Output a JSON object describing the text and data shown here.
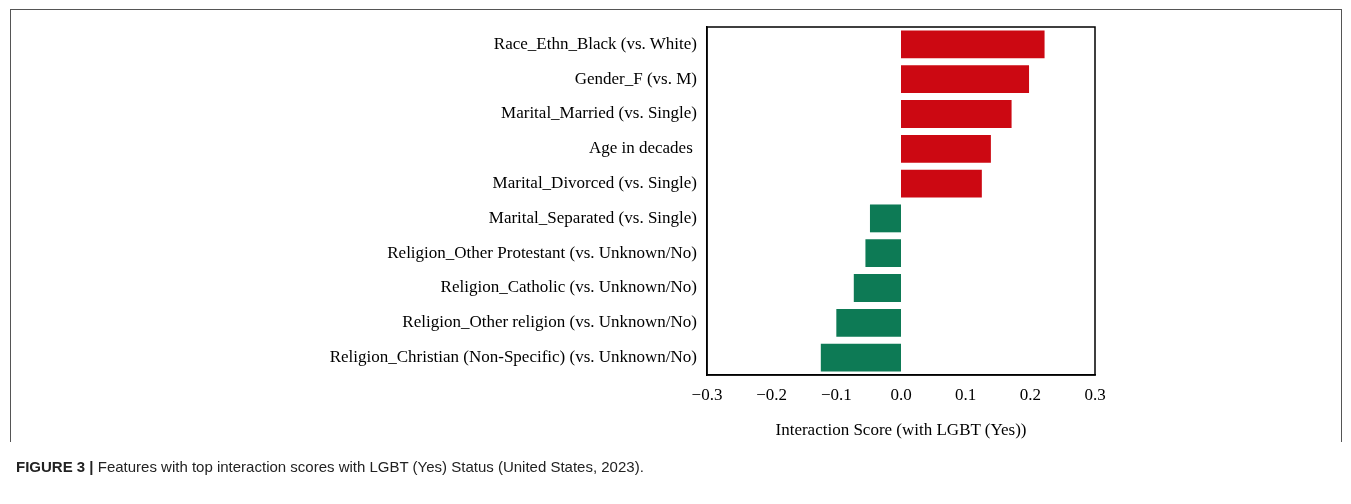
{
  "chart_data": {
    "type": "bar",
    "orientation": "horizontal",
    "categories": [
      "Race_Ethn_Black (vs. White)",
      "Gender_F (vs. M)",
      "Marital_Married (vs. Single)",
      "Age in decades ",
      "Marital_Divorced (vs. Single)",
      "Marital_Separated (vs. Single)",
      "Religion_Other Protestant (vs. Unknown/No)",
      "Religion_Catholic (vs. Unknown/No)",
      "Religion_Other religion (vs. Unknown/No)",
      "Religion_Christian (Non-Specific) (vs. Unknown/No)"
    ],
    "values": [
      0.222,
      0.198,
      0.171,
      0.139,
      0.125,
      -0.048,
      -0.055,
      -0.073,
      -0.1,
      -0.124
    ],
    "colors": [
      "#cc0812",
      "#cc0812",
      "#cc0812",
      "#cc0812",
      "#cc0812",
      "#0d7a55",
      "#0d7a55",
      "#0d7a55",
      "#0d7a55",
      "#0d7a55"
    ],
    "xlim": [
      -0.3,
      0.3
    ],
    "xticks": [
      {
        "value": -0.3,
        "label": "−0.3"
      },
      {
        "value": -0.2,
        "label": "−0.2"
      },
      {
        "value": -0.1,
        "label": "−0.1"
      },
      {
        "value": 0,
        "label": "0.0"
      },
      {
        "value": 0.1,
        "label": "0.1"
      },
      {
        "value": 0.2,
        "label": "0.2"
      },
      {
        "value": 0.3,
        "label": "0.3"
      }
    ],
    "xlabel": "Interaction Score (with LGBT (Yes))",
    "grid": false,
    "legend": false,
    "annotations": [
      "FIGURE 3 | Features with top interaction scores with LGBT (Yes) Status (United States, 2023)."
    ]
  }
}
